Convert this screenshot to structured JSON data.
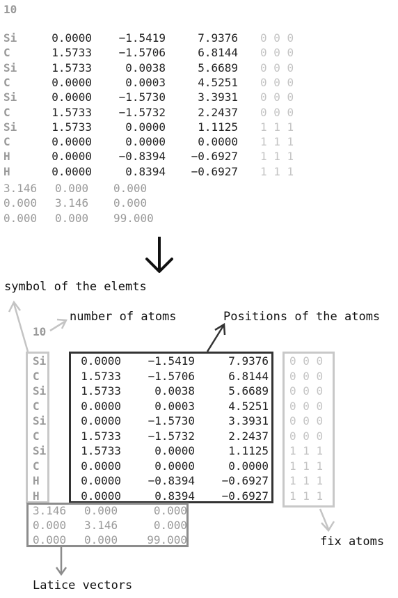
{
  "natoms": "10",
  "atoms": [
    {
      "sym": "Si",
      "x": "0.0000",
      "y": "−1.5419",
      "z": "7.9376",
      "fix": "0 0 0"
    },
    {
      "sym": "C",
      "x": "1.5733",
      "y": "−1.5706",
      "z": "6.8144",
      "fix": "0 0 0"
    },
    {
      "sym": "Si",
      "x": "1.5733",
      "y": "0.0038",
      "z": "5.6689",
      "fix": "0 0 0"
    },
    {
      "sym": "C",
      "x": "0.0000",
      "y": "0.0003",
      "z": "4.5251",
      "fix": "0 0 0"
    },
    {
      "sym": "Si",
      "x": "0.0000",
      "y": "−1.5730",
      "z": "3.3931",
      "fix": "0 0 0"
    },
    {
      "sym": "C",
      "x": "1.5733",
      "y": "−1.5732",
      "z": "2.2437",
      "fix": "0 0 0"
    },
    {
      "sym": "Si",
      "x": "1.5733",
      "y": "0.0000",
      "z": "1.1125",
      "fix": "1 1 1"
    },
    {
      "sym": "C",
      "x": "0.0000",
      "y": "0.0000",
      "z": "0.0000",
      "fix": "1 1 1"
    },
    {
      "sym": "H",
      "x": "0.0000",
      "y": "−0.8394",
      "z": "−0.6927",
      "fix": "1 1 1"
    },
    {
      "sym": "H",
      "x": "0.0000",
      "y": "0.8394",
      "z": "−0.6927",
      "fix": "1 1 1"
    }
  ],
  "lattice": [
    [
      "3.146",
      "0.000",
      "0.000"
    ],
    [
      "0.000",
      "3.146",
      "0.000"
    ],
    [
      "0.000",
      "0.000",
      "99.000"
    ]
  ],
  "labels": {
    "symbol": "symbol of the elemts",
    "natoms": "number of atoms",
    "positions": "Positions of the atoms",
    "fix": "fix atoms",
    "lattice": "Latice vectors"
  },
  "arrow_glyph": "↓",
  "colors": {
    "text_dark": "#222222",
    "text_gray": "#9a9a9a",
    "text_light": "#c4c4c4",
    "box_dark": "#333333",
    "box_gray": "#8c8c8c",
    "box_light": "#c8c8c8"
  }
}
